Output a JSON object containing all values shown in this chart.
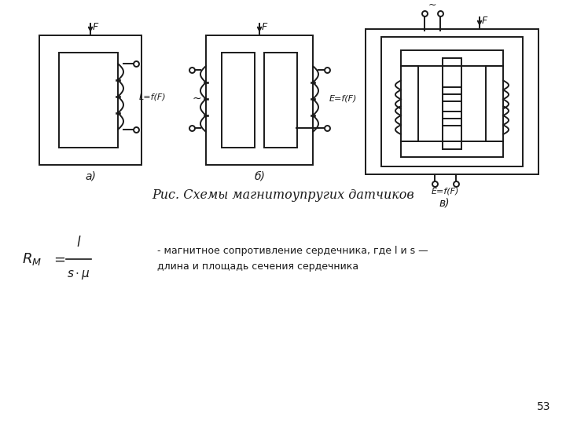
{
  "title_fig": "Рис. Схемы магнитоупругих датчиков",
  "label_a": "а)",
  "label_b": "б)",
  "label_v": "в)",
  "label_L": "L=f(F)",
  "label_E1": "E=f(F)",
  "label_E2": "E=f(F)",
  "label_F": "F",
  "page_num": "53",
  "bg_color": "#ffffff",
  "line_color": "#1a1a1a"
}
